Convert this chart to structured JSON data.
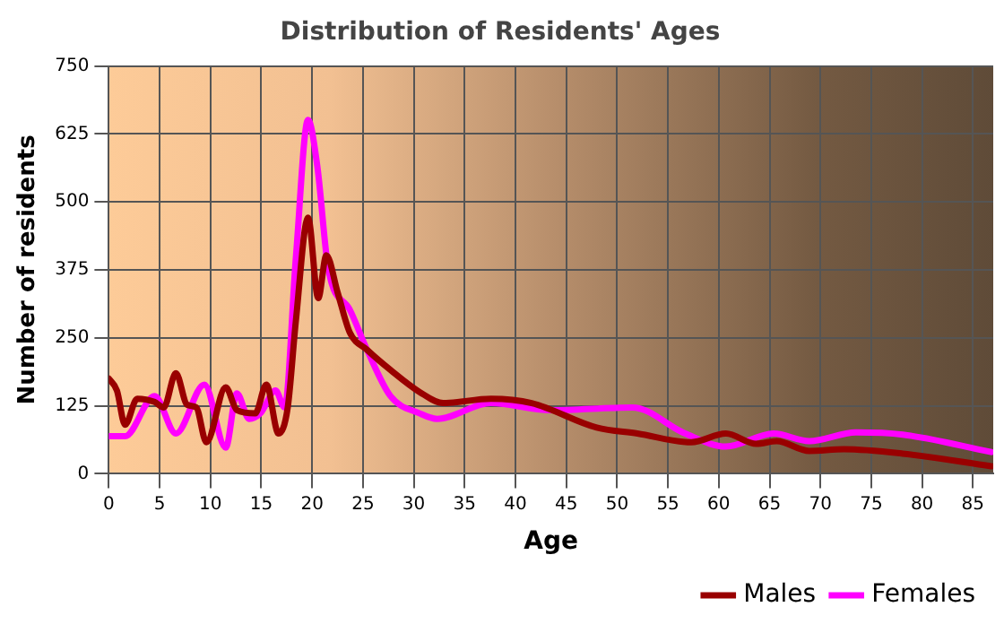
{
  "chart_data": {
    "type": "line",
    "title": "Distribution of Residents' Ages",
    "xlabel": "Age",
    "ylabel": "Number of residents",
    "xlim": [
      0,
      87
    ],
    "xticks": [
      0,
      5,
      10,
      15,
      20,
      25,
      30,
      35,
      40,
      45,
      50,
      55,
      60,
      65,
      70,
      75,
      80,
      85
    ],
    "ylim": [
      0,
      750
    ],
    "yticks": [
      0,
      125,
      250,
      375,
      500,
      625,
      750
    ],
    "grid": true,
    "legend": "bottom right",
    "marker": "none",
    "line_style": "solid",
    "series": [
      {
        "name": "Males",
        "color": "#990000",
        "x": [
          0,
          0.8,
          1.6,
          2.8,
          4.5,
          5.4,
          6.6,
          7.7,
          8.6,
          9.6,
          11.5,
          12.6,
          14.4,
          15.5,
          16.7,
          17.6,
          18.4,
          19.6,
          20.6,
          21.4,
          22.5,
          23.7,
          25.4,
          27.7,
          30.6,
          32.9,
          37.6,
          41.6,
          48,
          52,
          57.3,
          60.7,
          63.7,
          65.7,
          68.9,
          72.3,
          78.1,
          86.8
        ],
        "values": [
          175,
          153,
          90,
          138,
          132,
          122,
          185,
          127,
          122,
          58,
          159,
          117,
          111,
          164,
          74,
          122,
          281,
          471,
          323,
          402,
          334,
          260,
          228,
          191,
          150,
          130,
          138,
          130,
          85,
          74,
          58,
          74,
          55,
          60,
          42,
          45,
          37,
          14
        ]
      },
      {
        "name": "Females",
        "color": "#ff00ff",
        "x": [
          0,
          1.6,
          4.5,
          6.6,
          9.4,
          11.5,
          12.6,
          13.8,
          14.9,
          16.4,
          17.3,
          18.4,
          19.6,
          20.5,
          21.6,
          23.7,
          25.4,
          27.7,
          30.6,
          32.3,
          37.6,
          43.4,
          51.5,
          56.7,
          60.7,
          65.4,
          68.9,
          73.5,
          78.1,
          86.8
        ],
        "values": [
          69,
          69,
          143,
          74,
          164,
          48,
          148,
          101,
          111,
          153,
          122,
          397,
          651,
          567,
          376,
          302,
          228,
          143,
          111,
          101,
          130,
          117,
          122,
          74,
          50,
          74,
          60,
          76,
          72,
          40
        ]
      }
    ]
  }
}
